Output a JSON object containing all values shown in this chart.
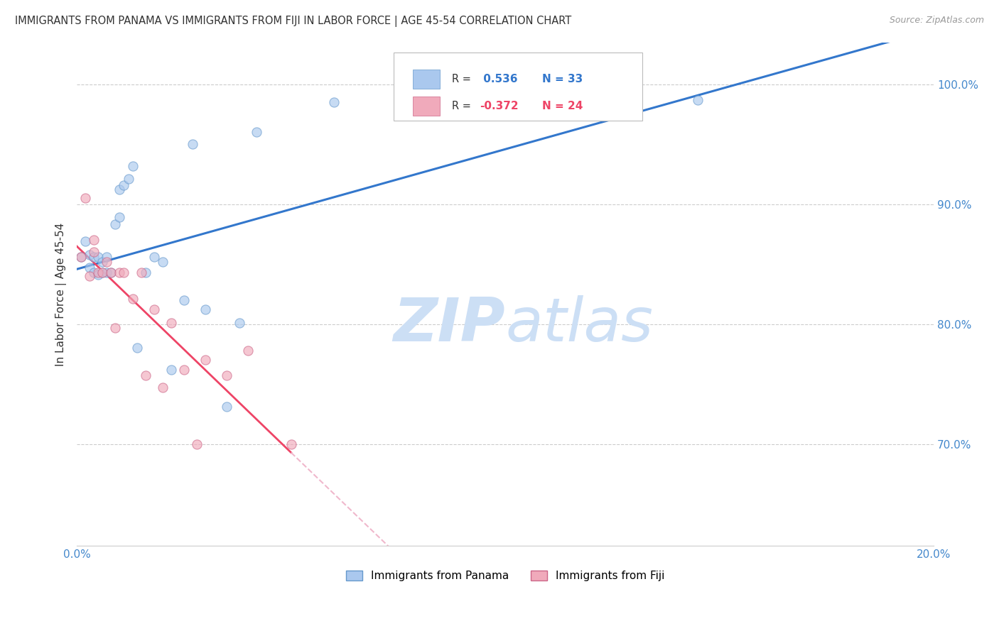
{
  "title": "IMMIGRANTS FROM PANAMA VS IMMIGRANTS FROM FIJI IN LABOR FORCE | AGE 45-54 CORRELATION CHART",
  "source": "Source: ZipAtlas.com",
  "ylabel": "In Labor Force | Age 45-54",
  "xlim": [
    0.0,
    0.2
  ],
  "ylim": [
    0.615,
    1.035
  ],
  "yticks": [
    0.7,
    0.8,
    0.9,
    1.0
  ],
  "ytick_labels": [
    "70.0%",
    "80.0%",
    "90.0%",
    "100.0%"
  ],
  "xticks": [
    0.0,
    0.05,
    0.1,
    0.15,
    0.2
  ],
  "xtick_labels": [
    "0.0%",
    "",
    "",
    "",
    "20.0%"
  ],
  "panama_x": [
    0.001,
    0.002,
    0.003,
    0.003,
    0.004,
    0.004,
    0.005,
    0.005,
    0.006,
    0.006,
    0.007,
    0.007,
    0.008,
    0.009,
    0.01,
    0.01,
    0.011,
    0.012,
    0.013,
    0.014,
    0.016,
    0.018,
    0.02,
    0.022,
    0.025,
    0.027,
    0.03,
    0.035,
    0.038,
    0.042,
    0.06,
    0.105,
    0.145
  ],
  "panama_y": [
    0.856,
    0.869,
    0.847,
    0.858,
    0.843,
    0.856,
    0.841,
    0.856,
    0.843,
    0.852,
    0.843,
    0.856,
    0.843,
    0.883,
    0.889,
    0.912,
    0.916,
    0.921,
    0.932,
    0.78,
    0.843,
    0.856,
    0.852,
    0.762,
    0.82,
    0.95,
    0.812,
    0.731,
    0.801,
    0.96,
    0.985,
    0.98,
    0.987
  ],
  "fiji_x": [
    0.001,
    0.002,
    0.003,
    0.004,
    0.004,
    0.005,
    0.006,
    0.007,
    0.008,
    0.009,
    0.01,
    0.011,
    0.013,
    0.015,
    0.016,
    0.018,
    0.02,
    0.022,
    0.025,
    0.028,
    0.03,
    0.035,
    0.04,
    0.05
  ],
  "fiji_y": [
    0.856,
    0.905,
    0.84,
    0.87,
    0.86,
    0.843,
    0.843,
    0.852,
    0.843,
    0.797,
    0.843,
    0.843,
    0.821,
    0.843,
    0.757,
    0.812,
    0.747,
    0.801,
    0.762,
    0.7,
    0.77,
    0.757,
    0.778,
    0.7
  ],
  "panama_color": "#aac8ee",
  "fiji_color": "#f0aabb",
  "panama_edge_color": "#6699cc",
  "fiji_edge_color": "#cc6688",
  "panama_line_color": "#3377cc",
  "fiji_line_color": "#ee4466",
  "fiji_line_ext_color": "#f0b8cc",
  "marker_size": 90,
  "alpha": 0.65,
  "R_panama": 0.536,
  "N_panama": 33,
  "R_fiji": -0.372,
  "N_fiji": 24,
  "watermark_zip": "ZIP",
  "watermark_atlas": "atlas",
  "watermark_color": "#ccdff5",
  "grid_color": "#cccccc",
  "background_color": "#ffffff",
  "title_color": "#333333",
  "axis_color": "#4488cc",
  "legend_R_color": "#333333",
  "legend_val_panama": "#3377cc",
  "legend_val_fiji": "#ee4466"
}
